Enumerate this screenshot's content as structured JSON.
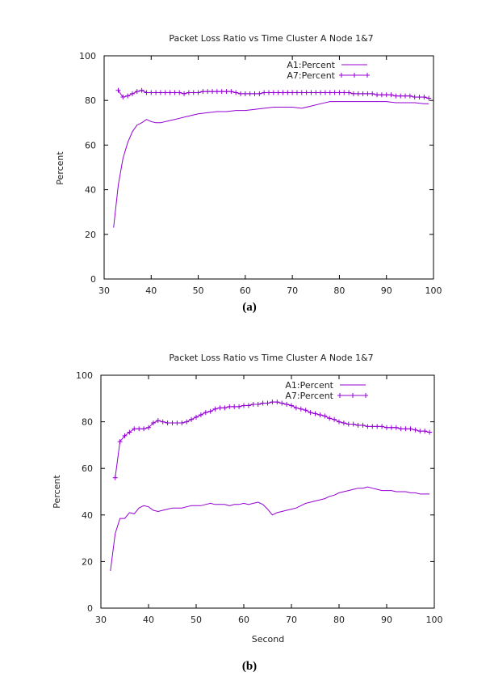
{
  "chart_data": [
    {
      "type": "line",
      "title": "Packet Loss Ratio vs Time Cluster A Node 1&7",
      "xlabel": "",
      "ylabel": "Percent",
      "caption": "(a)",
      "xlim": [
        30,
        100
      ],
      "ylim": [
        0,
        100
      ],
      "xticks": [
        "30",
        "40",
        "50",
        "60",
        "70",
        "80",
        "90",
        "100"
      ],
      "yticks": [
        "0",
        "20",
        "40",
        "60",
        "80",
        "100"
      ],
      "legend_position": "top-right",
      "color": "#9400d3",
      "series": [
        {
          "name": "A1:Percent",
          "marker": "none",
          "x": [
            32,
            33,
            34,
            35,
            36,
            37,
            38,
            39,
            40,
            41,
            42,
            43,
            44,
            45,
            46,
            47,
            48,
            49,
            50,
            52,
            54,
            56,
            58,
            60,
            62,
            64,
            66,
            68,
            70,
            72,
            74,
            76,
            78,
            80,
            82,
            84,
            86,
            88,
            90,
            92,
            94,
            96,
            98,
            99
          ],
          "y": [
            23,
            42,
            54,
            61,
            66,
            69,
            70,
            71.5,
            70.5,
            70,
            70,
            70.5,
            71,
            71.5,
            72,
            72.5,
            73,
            73.5,
            74,
            74.5,
            75,
            75,
            75.5,
            75.5,
            76,
            76.5,
            77,
            77,
            77,
            76.5,
            77.5,
            78.5,
            79.5,
            79.5,
            79.5,
            79.5,
            79.5,
            79.5,
            79.5,
            79,
            79,
            79,
            78.5,
            78.5
          ]
        },
        {
          "name": "A7:Percent",
          "marker": "plus",
          "x": [
            33,
            34,
            35,
            36,
            37,
            38,
            39,
            40,
            41,
            42,
            43,
            44,
            45,
            46,
            47,
            48,
            49,
            50,
            51,
            52,
            53,
            54,
            55,
            56,
            57,
            58,
            59,
            60,
            61,
            62,
            63,
            64,
            65,
            66,
            67,
            68,
            69,
            70,
            71,
            72,
            73,
            74,
            75,
            76,
            77,
            78,
            79,
            80,
            81,
            82,
            83,
            84,
            85,
            86,
            87,
            88,
            89,
            90,
            91,
            92,
            93,
            94,
            95,
            96,
            97,
            98,
            99
          ],
          "y": [
            84.5,
            81.5,
            82,
            83,
            84,
            84.5,
            83.5,
            83.5,
            83.5,
            83.5,
            83.5,
            83.5,
            83.5,
            83.5,
            83,
            83.5,
            83.5,
            83.5,
            84,
            84,
            84,
            84,
            84,
            84,
            84,
            83.5,
            83,
            83,
            83,
            83,
            83,
            83.5,
            83.5,
            83.5,
            83.5,
            83.5,
            83.5,
            83.5,
            83.5,
            83.5,
            83.5,
            83.5,
            83.5,
            83.5,
            83.5,
            83.5,
            83.5,
            83.5,
            83.5,
            83.5,
            83,
            83,
            83,
            83,
            83,
            82.5,
            82.5,
            82.5,
            82.5,
            82,
            82,
            82,
            82,
            81.5,
            81.5,
            81.5,
            81
          ]
        }
      ]
    },
    {
      "type": "line",
      "title": "Packet Loss Ratio vs Time Cluster A Node 1&7",
      "xlabel": "Second",
      "ylabel": "Percent",
      "caption": "(b)",
      "xlim": [
        30,
        100
      ],
      "ylim": [
        0,
        100
      ],
      "xticks": [
        "30",
        "40",
        "50",
        "60",
        "70",
        "80",
        "90",
        "100"
      ],
      "yticks": [
        "0",
        "20",
        "40",
        "60",
        "80",
        "100"
      ],
      "legend_position": "top-right",
      "color": "#9400d3",
      "series": [
        {
          "name": "A1:Percent",
          "marker": "none",
          "x": [
            32,
            33,
            34,
            35,
            36,
            37,
            38,
            39,
            40,
            41,
            42,
            43,
            44,
            45,
            46,
            47,
            48,
            49,
            50,
            51,
            52,
            53,
            54,
            55,
            56,
            57,
            58,
            59,
            60,
            61,
            62,
            63,
            64,
            65,
            66,
            67,
            68,
            69,
            70,
            71,
            72,
            73,
            74,
            75,
            76,
            77,
            78,
            79,
            80,
            81,
            82,
            83,
            84,
            85,
            86,
            87,
            88,
            89,
            90,
            91,
            92,
            93,
            94,
            95,
            96,
            97,
            98,
            99
          ],
          "y": [
            16,
            32,
            38.5,
            38.5,
            41,
            40.5,
            43,
            44,
            43.5,
            42,
            41.5,
            42,
            42.5,
            43,
            43,
            43,
            43.5,
            44,
            44,
            44,
            44.5,
            45,
            44.5,
            44.5,
            44.5,
            44,
            44.5,
            44.5,
            45,
            44.5,
            45,
            45.5,
            44.5,
            42.5,
            40,
            41,
            41.5,
            42,
            42.5,
            43,
            44,
            45,
            45.5,
            46,
            46.5,
            47,
            48,
            48.5,
            49.5,
            50,
            50.5,
            51,
            51.5,
            51.5,
            52,
            51.5,
            51,
            50.5,
            50.5,
            50.5,
            50,
            50,
            50,
            49.5,
            49.5,
            49,
            49,
            49
          ]
        },
        {
          "name": "A7:Percent",
          "marker": "plus",
          "x": [
            33,
            34,
            35,
            36,
            37,
            38,
            39,
            40,
            41,
            42,
            43,
            44,
            45,
            46,
            47,
            48,
            49,
            50,
            51,
            52,
            53,
            54,
            55,
            56,
            57,
            58,
            59,
            60,
            61,
            62,
            63,
            64,
            65,
            66,
            67,
            68,
            69,
            70,
            71,
            72,
            73,
            74,
            75,
            76,
            77,
            78,
            79,
            80,
            81,
            82,
            83,
            84,
            85,
            86,
            87,
            88,
            89,
            90,
            91,
            92,
            93,
            94,
            95,
            96,
            97,
            98,
            99
          ],
          "y": [
            56,
            71.5,
            74,
            75.5,
            77,
            77,
            77,
            77.5,
            79.5,
            80.5,
            80,
            79.5,
            79.5,
            79.5,
            79.5,
            80,
            81,
            82,
            83,
            84,
            84.5,
            85.5,
            86,
            86,
            86.5,
            86.5,
            86.5,
            87,
            87,
            87.5,
            87.5,
            88,
            88,
            88.5,
            88.5,
            88,
            87.5,
            87,
            86,
            85.5,
            85,
            84,
            83.5,
            83,
            82.5,
            81.5,
            81,
            80,
            79.5,
            79,
            79,
            78.5,
            78.5,
            78,
            78,
            78,
            78,
            77.5,
            77.5,
            77.5,
            77,
            77,
            77,
            76.5,
            76,
            76,
            75.5
          ]
        }
      ]
    }
  ]
}
